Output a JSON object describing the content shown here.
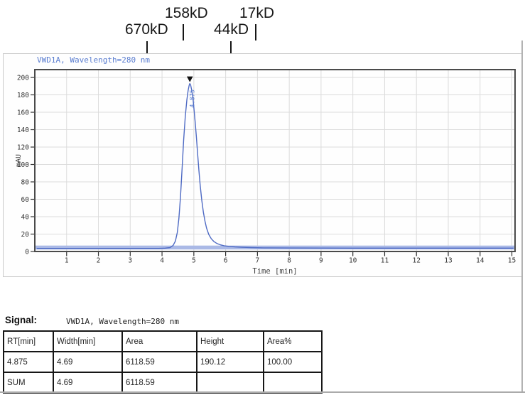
{
  "signal": {
    "label": "Signal:",
    "value": "VWD1A, Wavelength=280 nm"
  },
  "table": {
    "headers": [
      "RT[min]",
      "Width[min]",
      "Area",
      "Height",
      "Area%"
    ],
    "rows": [
      [
        "4.875",
        "4.69",
        "6118.59",
        "190.12",
        "100.00"
      ],
      [
        "SUM",
        "4.69",
        "6118.59",
        "",
        ""
      ]
    ]
  },
  "chart_data": {
    "type": "line",
    "title": "VWD1A, Wavelength=280 nm",
    "xlabel": "Time [min]",
    "ylabel": "mAU",
    "xlim": [
      0,
      15.1
    ],
    "ylim": [
      0,
      209
    ],
    "x_ticks": [
      1,
      2,
      3,
      4,
      5,
      6,
      7,
      8,
      9,
      10,
      11,
      12,
      13,
      14,
      15
    ],
    "y_ticks": [
      0,
      20,
      40,
      60,
      80,
      100,
      120,
      140,
      160,
      180,
      200
    ],
    "grid": true,
    "line_color": "#4f6bc4",
    "baseline_band_color": "#aab9e6",
    "title_color": "#5b7ed0",
    "mw_markers": [
      {
        "label": "670kD"
      },
      {
        "label": "158kD"
      },
      {
        "label": "44kD"
      },
      {
        "label": "17kD"
      }
    ],
    "peaks": [
      {
        "time": 4.875,
        "apex_mau": 193,
        "label": "4.875",
        "reported_height": 190.12
      }
    ],
    "series": [
      {
        "name": "VWD1A, Wavelength=280 nm",
        "points": [
          [
            0.06,
            3.5
          ],
          [
            0.5,
            3.5
          ],
          [
            1,
            3.5
          ],
          [
            1.5,
            3.5
          ],
          [
            2,
            3.5
          ],
          [
            2.5,
            3.5
          ],
          [
            3,
            3.5
          ],
          [
            3.5,
            3.5
          ],
          [
            3.9,
            3.5
          ],
          [
            4.1,
            3.8
          ],
          [
            4.25,
            4.5
          ],
          [
            4.35,
            7
          ],
          [
            4.42,
            12
          ],
          [
            4.48,
            22
          ],
          [
            4.53,
            38
          ],
          [
            4.58,
            62
          ],
          [
            4.63,
            95
          ],
          [
            4.68,
            128
          ],
          [
            4.73,
            155
          ],
          [
            4.78,
            174
          ],
          [
            4.82,
            185
          ],
          [
            4.855,
            191
          ],
          [
            4.875,
            193
          ],
          [
            4.9,
            191
          ],
          [
            4.93,
            186
          ],
          [
            4.97,
            177
          ],
          [
            5.0,
            166
          ],
          [
            5.04,
            150
          ],
          [
            5.08,
            132
          ],
          [
            5.12,
            112
          ],
          [
            5.16,
            93
          ],
          [
            5.2,
            76
          ],
          [
            5.25,
            59
          ],
          [
            5.3,
            45
          ],
          [
            5.35,
            35
          ],
          [
            5.4,
            27
          ],
          [
            5.47,
            19.5
          ],
          [
            5.55,
            14.5
          ],
          [
            5.63,
            11.5
          ],
          [
            5.72,
            9.3
          ],
          [
            5.82,
            7.8
          ],
          [
            5.95,
            6.6
          ],
          [
            6.1,
            5.9
          ],
          [
            6.3,
            5.3
          ],
          [
            6.5,
            4.9
          ],
          [
            6.8,
            4.5
          ],
          [
            7.2,
            4.2
          ],
          [
            8,
            4
          ],
          [
            9,
            3.9
          ],
          [
            10,
            3.8
          ],
          [
            11,
            3.8
          ],
          [
            12,
            3.8
          ],
          [
            13,
            3.8
          ],
          [
            14,
            3.8
          ],
          [
            15.05,
            3.8
          ]
        ]
      }
    ]
  }
}
